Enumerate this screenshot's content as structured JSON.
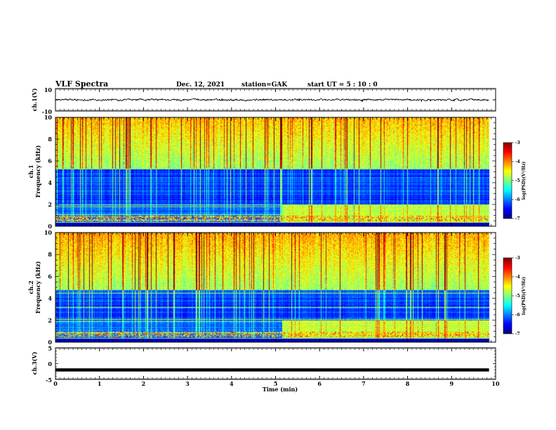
{
  "header": {
    "title": "VLF Spectra",
    "date": "Dec. 12, 2021",
    "station": "station=GAK",
    "start_ut": "start  UT =  5 : 10 : 0"
  },
  "chart_data": [
    {
      "type": "line",
      "name": "ch1-waveform",
      "ylabel": "ch.1(V)",
      "xlim": [
        0,
        10
      ],
      "ylim": [
        -10,
        10
      ],
      "yticks": [
        "10",
        "-10"
      ],
      "description_values": {
        "mean_level": 0,
        "noise_amplitude": 1.2,
        "data_end_min": 9.85
      }
    },
    {
      "type": "heatmap",
      "name": "ch1-spectrogram",
      "ylabel": "ch.1\nFrequency (kHz)",
      "ylabel_line1": "ch.1",
      "ylabel_line2": "Frequency (kHz)",
      "xlim": [
        0,
        10
      ],
      "ylim": [
        0,
        10
      ],
      "yticks": [
        "0",
        "2",
        "4",
        "6",
        "8",
        "10"
      ],
      "colorbar": {
        "label": "log(PSD)(V²/Hz)",
        "range": [
          -7,
          -3
        ],
        "ticks": [
          "-3",
          "-4",
          "-5",
          "-6",
          "-7"
        ]
      },
      "data_end_min": 9.85,
      "features": {
        "broadband_noise_top_khz": [
          5.3,
          10
        ],
        "low_band_enhancement_start_min": 5.15,
        "low_band_enhancement_khz": [
          0.2,
          2.0
        ],
        "lines_khz": [
          0.4,
          0.6,
          0.9,
          1.1,
          1.8,
          2.0,
          5.3
        ]
      }
    },
    {
      "type": "heatmap",
      "name": "ch2-spectrogram",
      "ylabel_line1": "ch.2",
      "ylabel_line2": "Frequency (kHz)",
      "xlim": [
        0,
        10
      ],
      "ylim": [
        0,
        10
      ],
      "yticks": [
        "0",
        "2",
        "4",
        "6",
        "8",
        "10"
      ],
      "colorbar": {
        "label": "log(PSD)(V²/Hz)",
        "range": [
          -7,
          -3
        ],
        "ticks": [
          "-3",
          "-4",
          "-5",
          "-6",
          "-7"
        ]
      },
      "data_end_min": 9.85,
      "features": {
        "broadband_noise_top_khz": [
          4.8,
          10
        ],
        "low_band_enhancement_start_min": 5.15,
        "low_band_enhancement_khz": [
          0.3,
          2.0
        ],
        "lines_khz": [
          0.4,
          0.9,
          1.9,
          2.1,
          3.2,
          4.5,
          5.0,
          6.0
        ]
      }
    },
    {
      "type": "line",
      "name": "ch3-waveform",
      "ylabel": "ch.3(V)",
      "xlim": [
        0,
        10
      ],
      "ylim": [
        -5,
        5
      ],
      "yticks": [
        "5",
        "0",
        "-5"
      ],
      "level": -2,
      "data_end_min": 9.85
    }
  ],
  "xaxis": {
    "label": "Time (min)",
    "ticks": [
      "0",
      "1",
      "2",
      "3",
      "4",
      "5",
      "6",
      "7",
      "8",
      "9",
      "10"
    ]
  },
  "colors": {
    "jet_stops": [
      "#00007f",
      "#0000ff",
      "#0080ff",
      "#00ffff",
      "#80ff80",
      "#ffff00",
      "#ff8000",
      "#ff0000",
      "#7f0000"
    ]
  }
}
